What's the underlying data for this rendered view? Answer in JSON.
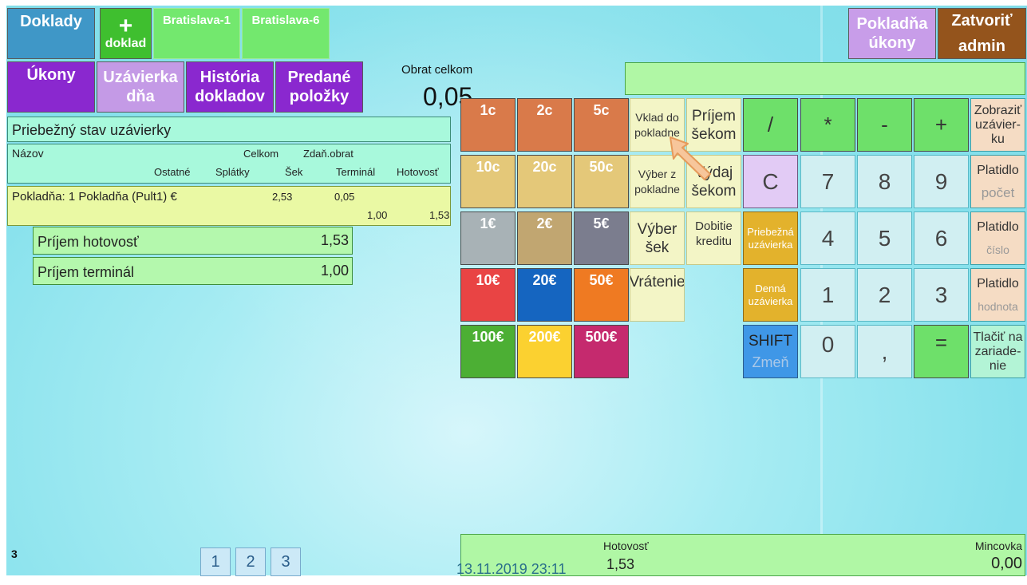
{
  "top_left": {
    "doklady": "Doklady",
    "new_doc_plus": "+",
    "new_doc_label": "doklad",
    "tabs": [
      "Bratislava-1",
      "Bratislava-6"
    ]
  },
  "top_right": {
    "pokladna_ukony": "Pokladňa úkony",
    "zatvorit": "Zatvoriť admin"
  },
  "menu": {
    "ukony": "Úkony",
    "uzavierka": "Uzávierka dňa",
    "historia": "História dokladov",
    "predane": "Predané položky"
  },
  "turnover": {
    "label": "Obrat celkom",
    "value": "0,05"
  },
  "report": {
    "title": "Priebežný stav uzávierky",
    "headers": {
      "nazov": "Názov",
      "celkom": "Celkom",
      "zdan_obrat": "Zdaň.obrat",
      "ostatne": "Ostatné",
      "splatky": "Splátky",
      "sek": "Šek",
      "terminal": "Terminál",
      "hotovost": "Hotovosť"
    },
    "row": {
      "name": "Pokladňa: 1 Pokladňa (Pult1) €",
      "celkom": "2,53",
      "zdan_obrat": "0,05",
      "terminal": "1,00",
      "hotovost": "1,53"
    },
    "summary": [
      {
        "label": "Príjem hotovosť",
        "value": "1,53"
      },
      {
        "label": "Príjem terminál",
        "value": "1,00"
      }
    ]
  },
  "coins": [
    "1c",
    "2c",
    "5c",
    "10c",
    "20c",
    "50c",
    "1€",
    "2€",
    "5€",
    "10€",
    "20€",
    "50€",
    "100€",
    "200€",
    "500€"
  ],
  "coin_colors": [
    "#d97a4a",
    "#d97a4a",
    "#d97a4a",
    "#e4c879",
    "#e4c879",
    "#e4c879",
    "#a8b2b6",
    "#c1a671",
    "#7b7d8e",
    "#e94444",
    "#1565c0",
    "#ef7a22",
    "#4caf34",
    "#fbd130",
    "#c52a6e"
  ],
  "functions": {
    "vklad": "Vklad do pokladne",
    "prijem_sekom": "Príjem šekom",
    "vyber": "Výber z pokladne",
    "vydaj_sekom": "Výdaj šekom",
    "vyber_sek": "Výber šek",
    "dobitie": "Dobitie kreditu",
    "vratenie": "Vrátenie"
  },
  "keypad": {
    "div": "/",
    "mul": "*",
    "minus": "-",
    "plus": "+",
    "c": "C",
    "k7": "7",
    "k8": "8",
    "k9": "9",
    "priebezna": "Priebežná uzávierka",
    "k4": "4",
    "k5": "5",
    "k6": "6",
    "denna": "Denná uzávierka",
    "k1": "1",
    "k2": "2",
    "k3": "3",
    "shift": "SHIFT",
    "shift_sub": "Zmeň",
    "k0": "0",
    "comma": ",",
    "eq": "="
  },
  "right_col": {
    "zobrazit": "Zobraziť uzávier-ku",
    "platidlo": "Platidlo",
    "pocet": "počet",
    "cislo": "číslo",
    "hodnota": "hodnota",
    "tlacit": "Tlačiť na zariade-nie"
  },
  "bottom": {
    "counter": "3",
    "pages": [
      "1",
      "2",
      "3"
    ],
    "datetime": "13.11.2019 23:11",
    "hotovost_label": "Hotovosť",
    "hotovost_value": "1,53",
    "mincovka_label": "Mincovka",
    "mincovka_value": "0,00"
  }
}
